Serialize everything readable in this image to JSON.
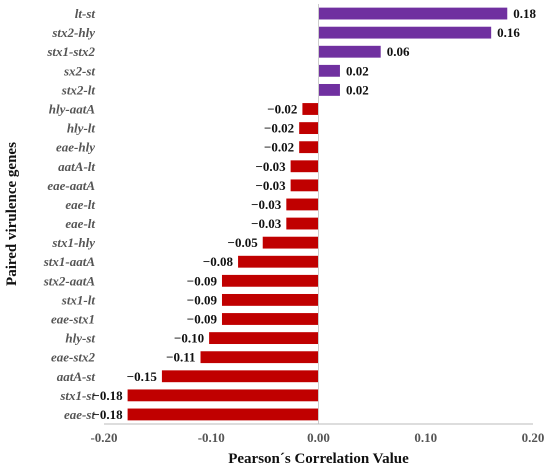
{
  "chart_data": {
    "type": "bar",
    "orientation": "horizontal",
    "xlabel": "Pearson´s Correlation Value",
    "ylabel": "Paired virulence genes",
    "xlim": [
      -0.2,
      0.2
    ],
    "xticks": [
      "-0.20",
      "-0.10",
      "0.00",
      "0.10",
      "0.20"
    ],
    "xtick_values": [
      -0.2,
      -0.1,
      0,
      0.1,
      0.2
    ],
    "grid": false,
    "colors": {
      "positive": "#7030A0",
      "negative": "#C00000"
    },
    "categories": [
      "lt-st",
      "stx2-hly",
      "stx1-stx2",
      "sx2-st",
      "stx2-lt",
      "hly-aatA",
      "hly-lt",
      "eae-hly",
      "aatA-lt",
      "eae-aatA",
      "eae-lt",
      "eae-lt",
      "stx1-hly",
      "stx1-aatA",
      "stx2-aatA",
      "stx1-lt",
      "eae-stx1",
      "hly-st",
      "eae-stx2",
      "aatA-st",
      "stx1-st",
      "eae-st"
    ],
    "values": [
      0.176,
      0.161,
      0.058,
      0.02,
      0.02,
      -0.015,
      -0.018,
      -0.018,
      -0.026,
      -0.026,
      -0.03,
      -0.03,
      -0.052,
      -0.075,
      -0.09,
      -0.09,
      -0.09,
      -0.102,
      -0.11,
      -0.146,
      -0.178,
      -0.178
    ],
    "labels": [
      "0.18",
      "0.16",
      "0.06",
      "0.02",
      "0.02",
      "−0.02",
      "−0.02",
      "−0.02",
      "−0.03",
      "−0.03",
      "−0.03",
      "−0.03",
      "−0.05",
      "−0.08",
      "−0.09",
      "−0.09",
      "−0.09",
      "−0.10",
      "−0.11",
      "−0.15",
      "−0.18",
      "−0.18"
    ]
  }
}
